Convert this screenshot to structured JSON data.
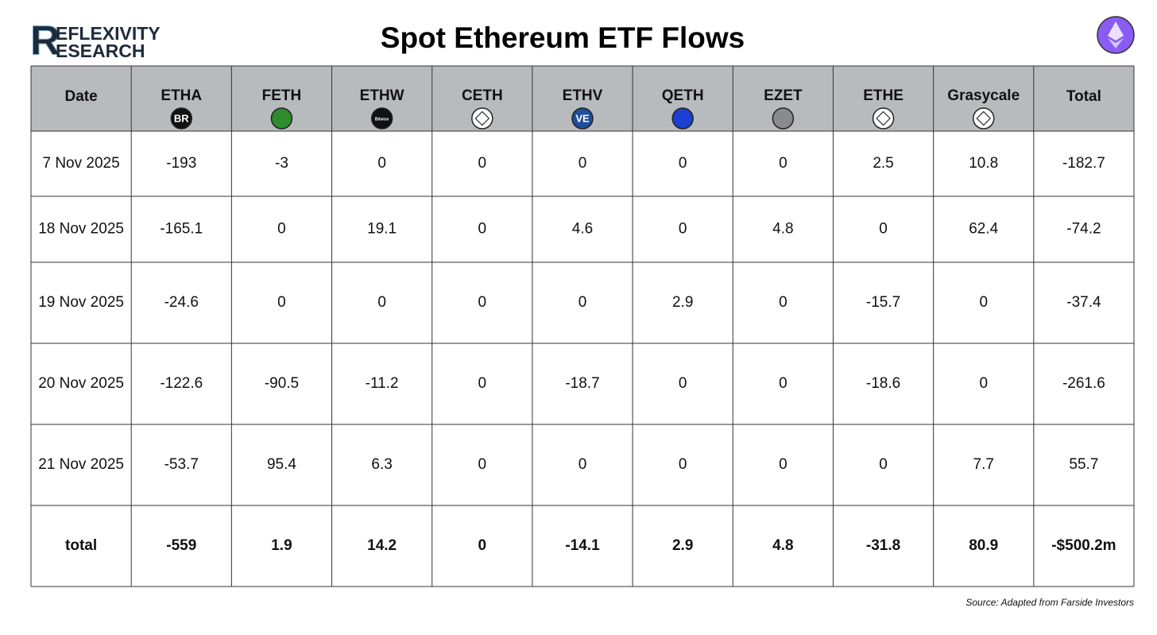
{
  "header": {
    "logo": {
      "letter": "R",
      "line1": "EFLEXIVITY",
      "line2": "ESEARCH"
    },
    "title": "Spot Ethereum ETF Flows"
  },
  "table": {
    "columns": [
      {
        "label": "Date"
      },
      {
        "label": "ETHA",
        "icon_color": "#111111",
        "icon_text": "BR"
      },
      {
        "label": "FETH",
        "icon_color": "#2e8b2e"
      },
      {
        "label": "ETHW",
        "icon_color": "#111111",
        "icon_text": "Bitwise"
      },
      {
        "label": "CETH",
        "icon_color": "#ffffff"
      },
      {
        "label": "ETHV",
        "icon_color": "#1f4f9c",
        "icon_text": "VE"
      },
      {
        "label": "QETH",
        "icon_color": "#1a3fd1"
      },
      {
        "label": "EZET",
        "icon_color": "#8a8a8a"
      },
      {
        "label": "ETHE",
        "icon_color": "#ffffff"
      },
      {
        "label": "Grasycale",
        "icon_color": "#ffffff"
      },
      {
        "label": "Total"
      }
    ],
    "rows": [
      [
        "7 Nov 2025",
        -193,
        -3,
        0,
        0,
        0,
        0,
        0,
        2.5,
        10.8,
        -182.7
      ],
      [
        "18 Nov 2025",
        -165.1,
        0,
        19.1,
        0,
        4.6,
        0,
        4.8,
        0,
        62.4,
        -74.2
      ],
      [
        "19 Nov 2025",
        -24.6,
        0,
        0,
        0,
        0,
        2.9,
        0,
        -15.7,
        0,
        -37.4
      ],
      [
        "20 Nov 2025",
        -122.6,
        -90.5,
        -11.2,
        0,
        -18.7,
        0,
        0,
        -18.6,
        0,
        -261.6
      ],
      [
        "21 Nov 2025",
        -53.7,
        95.4,
        6.3,
        0,
        0,
        0,
        0,
        0,
        7.7,
        55.7
      ]
    ],
    "total_row": [
      "total",
      -559,
      1.9,
      14.2,
      0,
      -14.1,
      2.9,
      4.8,
      -31.8,
      80.9,
      "-$500.2m"
    ]
  },
  "footer": {
    "source": "Source: Adapted from Farside Investors"
  }
}
